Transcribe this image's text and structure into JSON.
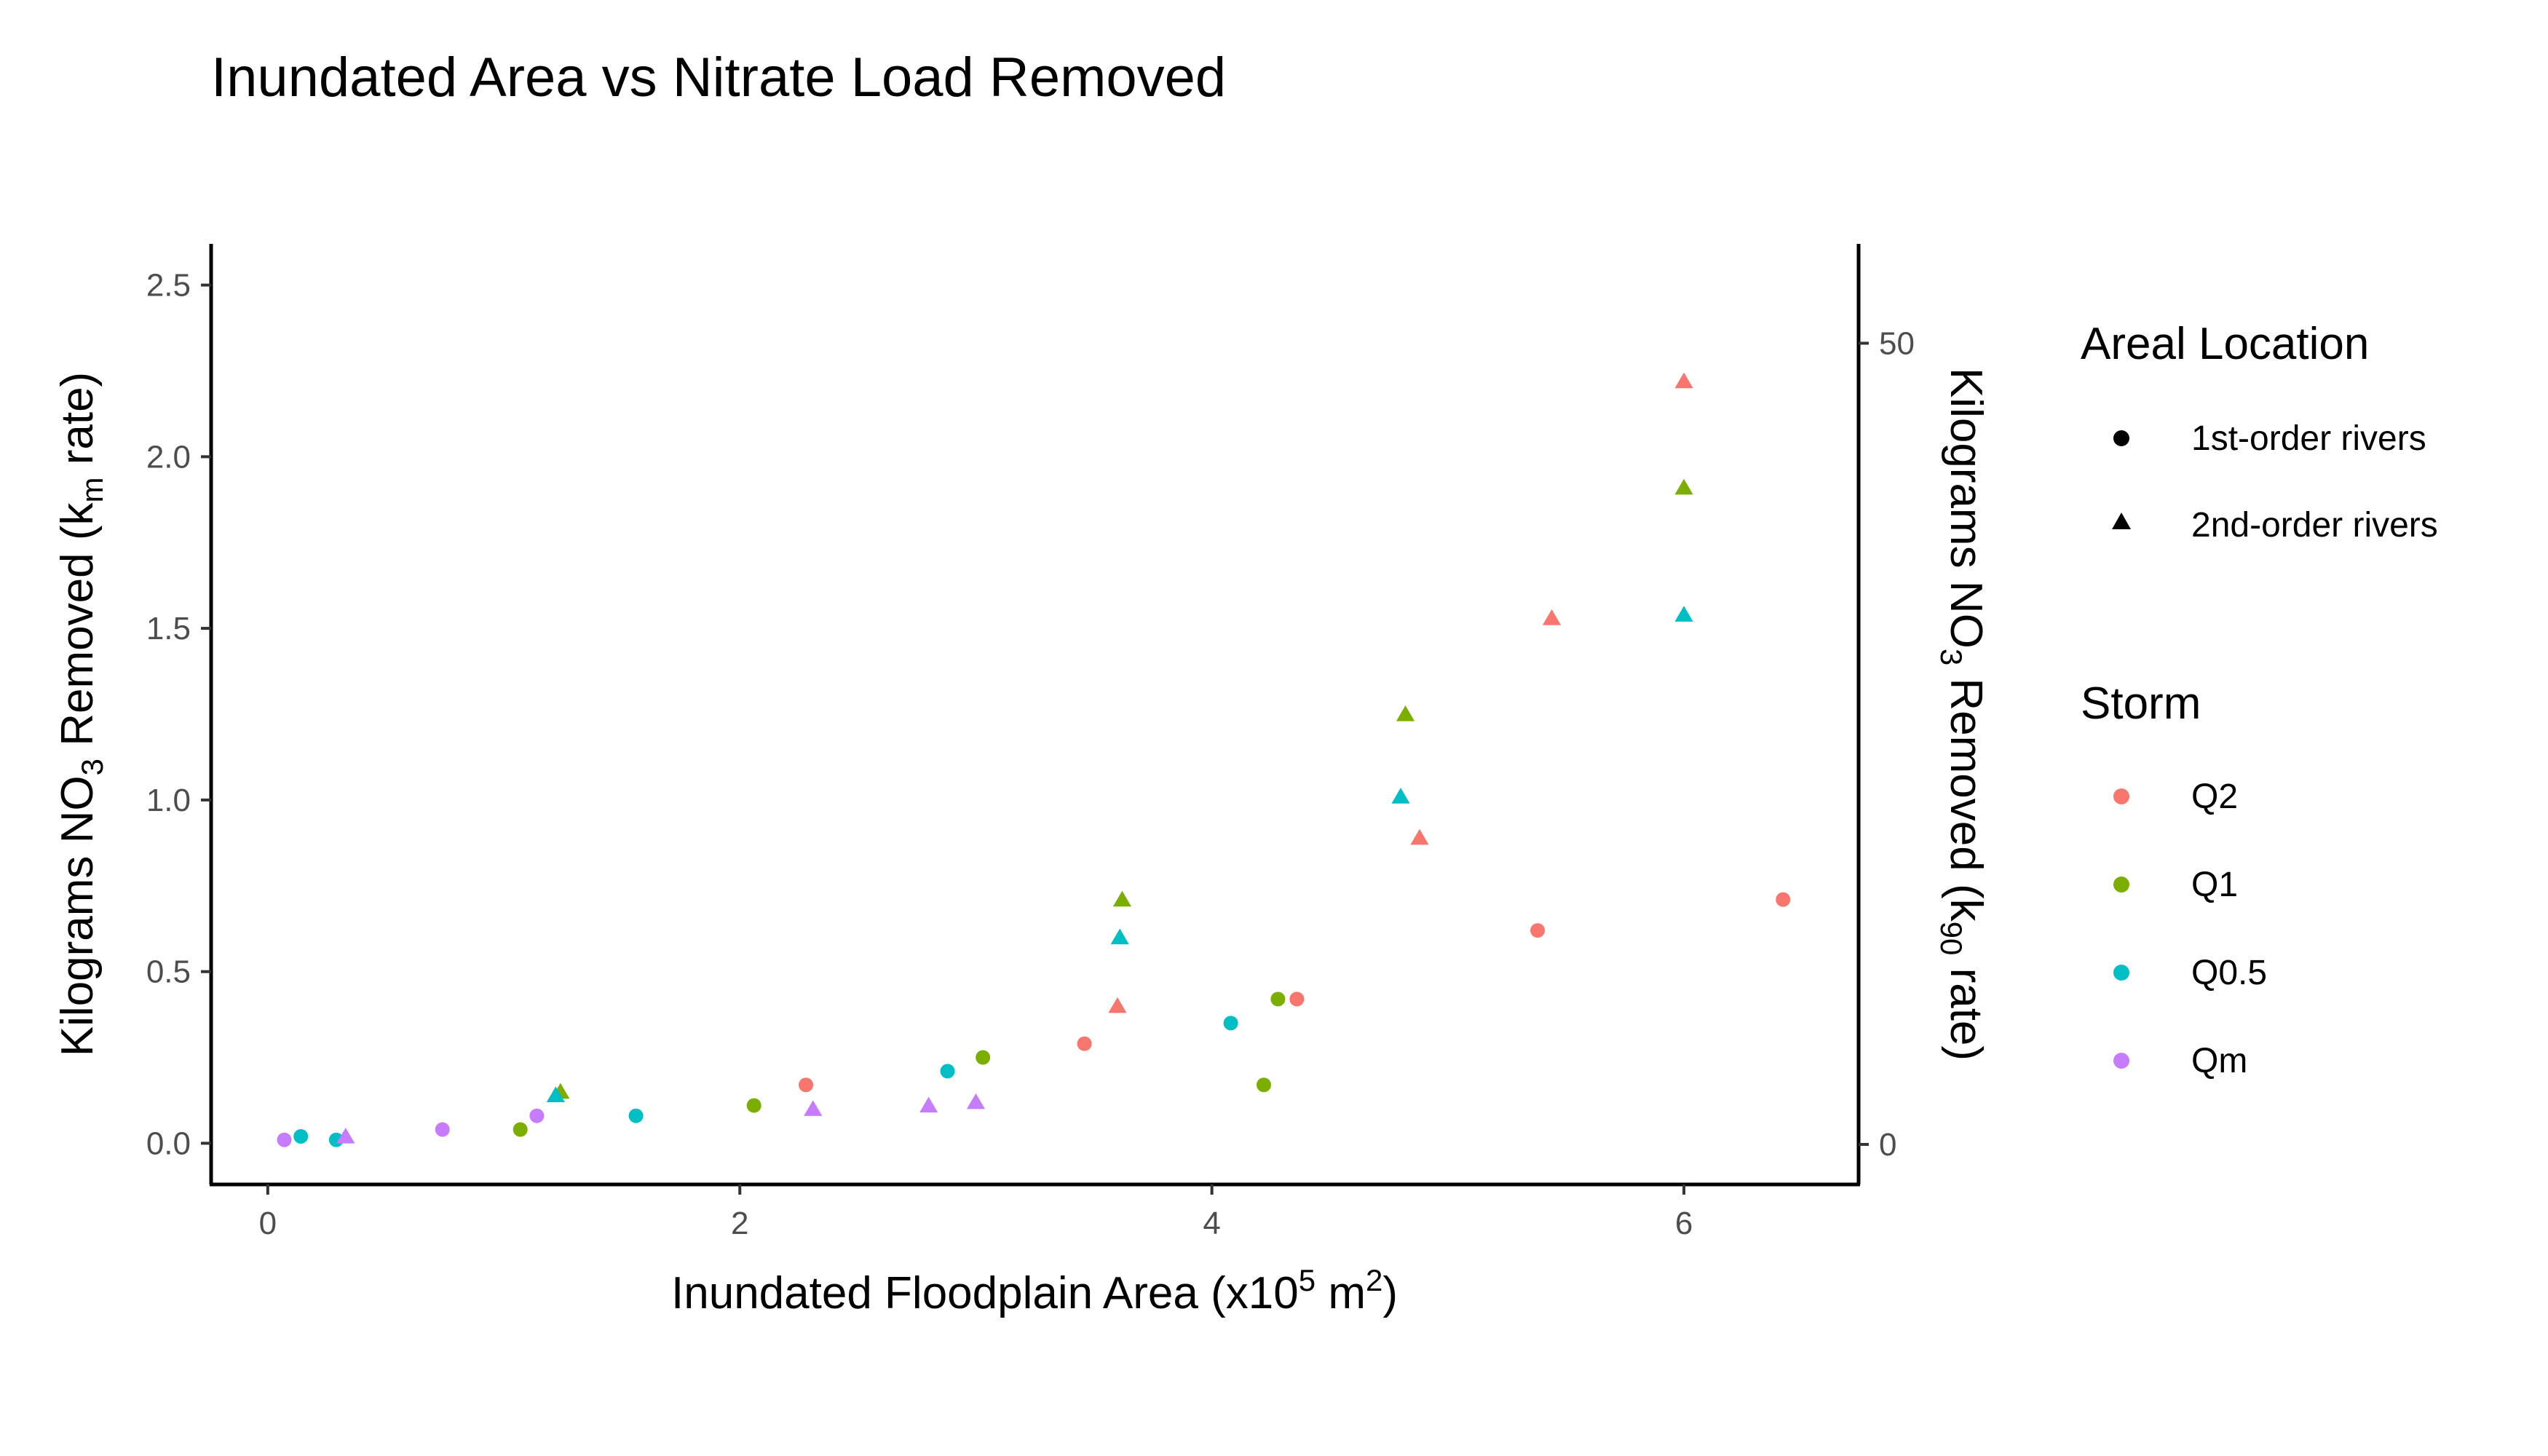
{
  "chart_data": {
    "type": "scatter",
    "title": "Inundated Area vs Nitrate Load Removed",
    "xlabel": {
      "prefix": "Inundated Floodplain Area (x10",
      "sup1": "5",
      "mid": " m",
      "sup2": "2",
      "suffix": ")"
    },
    "ylabel_left": {
      "prefix": "Kilograms NO",
      "sub1": "3",
      "mid": " Removed (k",
      "sub2": "m",
      "suffix": " rate)"
    },
    "ylabel_right": {
      "prefix": "Kilograms NO",
      "sub1": "3",
      "mid": " Removed (k",
      "sub2": "90",
      "suffix": " rate)"
    },
    "xlim": [
      -0.24,
      6.74
    ],
    "ylim_left": [
      -0.12,
      2.62
    ],
    "ylim_right": [
      -2.5,
      56.2
    ],
    "x_ticks": [
      0,
      2,
      4,
      6
    ],
    "y_left_ticks": [
      "0.0",
      "0.5",
      "1.0",
      "1.5",
      "2.0",
      "2.5"
    ],
    "y_right_ticks": [
      "0",
      "50"
    ],
    "grid": false,
    "legend": {
      "position": "right",
      "shape_title": "Areal Location",
      "shape_items": [
        {
          "label": "1st-order rivers",
          "shape": "circle"
        },
        {
          "label": "2nd-order rivers",
          "shape": "triangle"
        }
      ],
      "color_title": "Storm",
      "color_items": [
        {
          "label": "Q2",
          "color": "#F8766D"
        },
        {
          "label": "Q1",
          "color": "#7CAE00"
        },
        {
          "label": "Q0.5",
          "color": "#00BFC4"
        },
        {
          "label": "Qm",
          "color": "#C77CFF"
        }
      ]
    },
    "series": [
      {
        "storm": "Q2",
        "color": "#F8766D",
        "location": "1st-order rivers",
        "points": [
          [
            2.28,
            0.17
          ],
          [
            3.46,
            0.29
          ],
          [
            4.36,
            0.42
          ],
          [
            5.38,
            0.62
          ],
          [
            6.42,
            0.71
          ]
        ]
      },
      {
        "storm": "Q2",
        "color": "#F8766D",
        "location": "2nd-order rivers",
        "points": [
          [
            3.6,
            0.4
          ],
          [
            4.88,
            0.89
          ],
          [
            5.44,
            1.53
          ],
          [
            6.0,
            2.22
          ]
        ]
      },
      {
        "storm": "Q1",
        "color": "#7CAE00",
        "location": "1st-order rivers",
        "points": [
          [
            1.07,
            0.04
          ],
          [
            2.06,
            0.11
          ],
          [
            3.03,
            0.25
          ],
          [
            4.22,
            0.17
          ],
          [
            4.28,
            0.42
          ]
        ]
      },
      {
        "storm": "Q1",
        "color": "#7CAE00",
        "location": "2nd-order rivers",
        "points": [
          [
            1.24,
            0.15
          ],
          [
            3.62,
            0.71
          ],
          [
            4.82,
            1.25
          ],
          [
            6.0,
            1.91
          ]
        ]
      },
      {
        "storm": "Q0.5",
        "color": "#00BFC4",
        "location": "1st-order rivers",
        "points": [
          [
            0.14,
            0.02
          ],
          [
            0.29,
            0.01
          ],
          [
            1.56,
            0.08
          ],
          [
            2.88,
            0.21
          ],
          [
            4.08,
            0.35
          ]
        ]
      },
      {
        "storm": "Q0.5",
        "color": "#00BFC4",
        "location": "2nd-order rivers",
        "points": [
          [
            1.22,
            0.14
          ],
          [
            3.61,
            0.6
          ],
          [
            4.8,
            1.01
          ],
          [
            6.0,
            1.54
          ]
        ]
      },
      {
        "storm": "Qm",
        "color": "#C77CFF",
        "location": "1st-order rivers",
        "points": [
          [
            0.07,
            0.01
          ],
          [
            0.74,
            0.04
          ],
          [
            1.14,
            0.08
          ]
        ]
      },
      {
        "storm": "Qm",
        "color": "#C77CFF",
        "location": "2nd-order rivers",
        "points": [
          [
            0.33,
            0.02
          ],
          [
            2.31,
            0.1
          ],
          [
            2.8,
            0.11
          ],
          [
            3.0,
            0.12
          ]
        ]
      }
    ]
  }
}
